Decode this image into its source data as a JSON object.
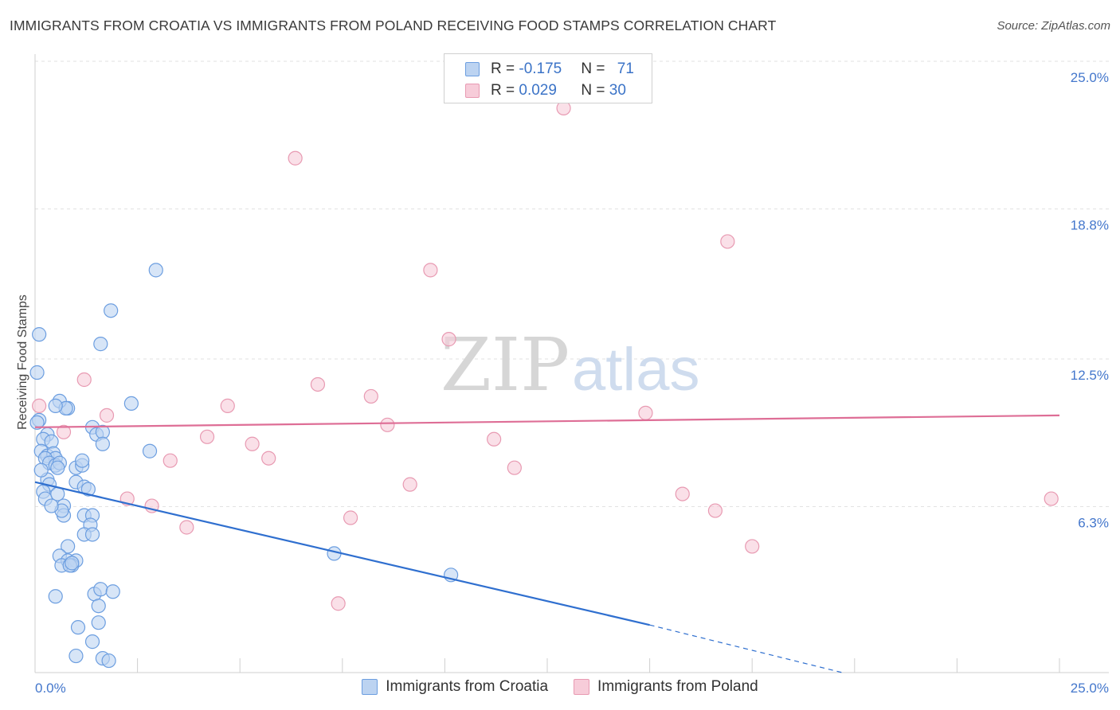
{
  "chart_data": {
    "type": "scatter",
    "title": "IMMIGRANTS FROM CROATIA VS IMMIGRANTS FROM POLAND RECEIVING FOOD STAMPS CORRELATION CHART",
    "source": "Source: ZipAtlas.com",
    "xlabel": "",
    "ylabel": "Receiving Food Stamps",
    "xlim": [
      0,
      25
    ],
    "ylim": [
      0,
      25.0
    ],
    "x_tick_labels": [
      "0.0%",
      "25.0%"
    ],
    "y_ticks": [
      {
        "value": 25.0,
        "label": "25.0%"
      },
      {
        "value": 18.8,
        "label": "18.8%"
      },
      {
        "value": 12.5,
        "label": "12.5%"
      },
      {
        "value": 6.3,
        "label": "6.3%"
      }
    ],
    "watermark": {
      "zip": "ZIP",
      "atlas": "atlas"
    },
    "stats": [
      {
        "r_label": "R = ",
        "r_value": "-0.175",
        "n_label": "N = ",
        "n_value": "71"
      },
      {
        "r_label": "R = ",
        "r_value": "0.029",
        "n_label": "N = ",
        "n_value": "30"
      }
    ],
    "series": [
      {
        "name": "Immigrants from Croatia",
        "color": "#6c9ee0",
        "fill": "#bcd3f1",
        "line_color": "#2f6fcf",
        "trend": {
          "x0": 0.0,
          "y0": 8.0,
          "x_solid_end": 15.0,
          "y_solid_end": 2.0,
          "x_end": 19.7,
          "y_end": 0.0
        },
        "points": [
          [
            0.1,
            14.2
          ],
          [
            0.05,
            12.6
          ],
          [
            0.1,
            10.6
          ],
          [
            0.3,
            10.0
          ],
          [
            0.2,
            9.8
          ],
          [
            0.4,
            9.7
          ],
          [
            0.15,
            9.3
          ],
          [
            0.3,
            9.1
          ],
          [
            0.45,
            9.2
          ],
          [
            0.5,
            9.0
          ],
          [
            0.25,
            9.0
          ],
          [
            0.35,
            8.8
          ],
          [
            0.5,
            8.7
          ],
          [
            0.6,
            8.8
          ],
          [
            0.55,
            8.6
          ],
          [
            0.3,
            8.1
          ],
          [
            0.35,
            7.9
          ],
          [
            0.2,
            7.6
          ],
          [
            0.25,
            7.3
          ],
          [
            0.55,
            7.5
          ],
          [
            0.7,
            7.0
          ],
          [
            0.7,
            6.6
          ],
          [
            0.65,
            6.8
          ],
          [
            0.8,
            11.1
          ],
          [
            0.6,
            11.4
          ],
          [
            0.75,
            11.1
          ],
          [
            0.5,
            11.2
          ],
          [
            1.4,
            10.3
          ],
          [
            1.5,
            10.0
          ],
          [
            1.65,
            10.1
          ],
          [
            1.65,
            9.6
          ],
          [
            1.0,
            8.6
          ],
          [
            1.15,
            8.7
          ],
          [
            1.15,
            8.9
          ],
          [
            1.0,
            8.0
          ],
          [
            1.2,
            7.8
          ],
          [
            1.3,
            7.7
          ],
          [
            1.2,
            6.6
          ],
          [
            1.4,
            6.6
          ],
          [
            1.35,
            6.2
          ],
          [
            1.2,
            5.8
          ],
          [
            1.4,
            5.8
          ],
          [
            0.8,
            5.3
          ],
          [
            0.6,
            4.9
          ],
          [
            0.8,
            4.7
          ],
          [
            1.0,
            4.7
          ],
          [
            0.9,
            4.5
          ],
          [
            0.65,
            4.5
          ],
          [
            0.85,
            4.5
          ],
          [
            0.5,
            3.2
          ],
          [
            1.45,
            3.3
          ],
          [
            1.6,
            3.5
          ],
          [
            1.9,
            3.4
          ],
          [
            1.55,
            2.8
          ],
          [
            1.55,
            2.1
          ],
          [
            1.05,
            1.9
          ],
          [
            1.4,
            1.3
          ],
          [
            1.0,
            0.7
          ],
          [
            1.65,
            0.6
          ],
          [
            1.8,
            0.5
          ],
          [
            1.6,
            13.8
          ],
          [
            1.85,
            15.2
          ],
          [
            2.35,
            11.3
          ],
          [
            2.8,
            9.3
          ],
          [
            2.95,
            16.9
          ],
          [
            7.3,
            5.0
          ],
          [
            10.15,
            4.1
          ],
          [
            0.05,
            10.5
          ],
          [
            0.15,
            8.5
          ],
          [
            0.4,
            7.0
          ],
          [
            0.9,
            4.6
          ]
        ]
      },
      {
        "name": "Immigrants from Poland",
        "color": "#e89ab2",
        "fill": "#f7ccd9",
        "line_color": "#de6e96",
        "trend": {
          "x0": 0.0,
          "y0": 10.3,
          "x_solid_end": 25.0,
          "y_solid_end": 10.8,
          "x_end": 25.0,
          "y_end": 10.8
        },
        "points": [
          [
            0.1,
            11.2
          ],
          [
            0.7,
            10.1
          ],
          [
            1.2,
            12.3
          ],
          [
            1.75,
            10.8
          ],
          [
            2.25,
            7.3
          ],
          [
            2.85,
            7.0
          ],
          [
            3.3,
            8.9
          ],
          [
            3.7,
            6.1
          ],
          [
            4.2,
            9.9
          ],
          [
            4.7,
            11.2
          ],
          [
            5.3,
            9.6
          ],
          [
            5.7,
            9.0
          ],
          [
            6.35,
            21.6
          ],
          [
            6.9,
            12.1
          ],
          [
            7.7,
            6.5
          ],
          [
            7.4,
            2.9
          ],
          [
            8.2,
            11.6
          ],
          [
            8.6,
            10.4
          ],
          [
            9.15,
            7.9
          ],
          [
            9.65,
            16.9
          ],
          [
            10.1,
            14.0
          ],
          [
            11.2,
            9.8
          ],
          [
            11.7,
            8.6
          ],
          [
            12.9,
            23.7
          ],
          [
            14.9,
            10.9
          ],
          [
            15.8,
            7.5
          ],
          [
            16.6,
            6.8
          ],
          [
            16.9,
            18.1
          ],
          [
            17.5,
            5.3
          ],
          [
            24.8,
            7.3
          ]
        ]
      }
    ]
  }
}
